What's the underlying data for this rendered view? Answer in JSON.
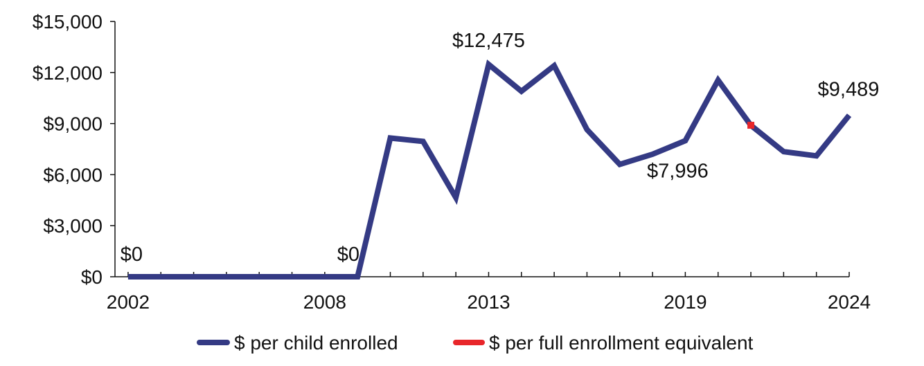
{
  "chart_data": {
    "type": "line",
    "x": [
      2002,
      2003,
      2004,
      2005,
      2006,
      2007,
      2008,
      2009,
      2010,
      2011,
      2012,
      2013,
      2014,
      2015,
      2016,
      2017,
      2018,
      2019,
      2020,
      2021,
      2022,
      2023,
      2024
    ],
    "x_tick_labels": [
      "2002",
      "2008",
      "2013",
      "2019",
      "2024"
    ],
    "y_tick_labels": [
      "$0",
      "$3,000",
      "$6,000",
      "$9,000",
      "$12,000",
      "$15,000"
    ],
    "y_ticks": [
      0,
      3000,
      6000,
      9000,
      12000,
      15000
    ],
    "ylim": [
      0,
      15000
    ],
    "series": [
      {
        "name": "$ per child enrolled",
        "color": "#343a84",
        "values": [
          0,
          0,
          0,
          0,
          0,
          0,
          0,
          0,
          8150,
          7950,
          4650,
          12475,
          10900,
          12400,
          8650,
          6600,
          7200,
          7996,
          11550,
          8900,
          7350,
          7100,
          9489
        ]
      },
      {
        "name": "$ per full enrollment equivalent",
        "color": "#e8262a",
        "x": [
          2021
        ],
        "values": [
          8900
        ]
      }
    ],
    "annotations": [
      {
        "text": "$0",
        "x": 2002,
        "y": 0
      },
      {
        "text": "$0",
        "x": 2008,
        "y": 0
      },
      {
        "text": "$12,475",
        "x": 2013,
        "y": 12475
      },
      {
        "text": "$7,996",
        "x": 2019,
        "y": 7996
      },
      {
        "text": "$9,489",
        "x": 2024,
        "y": 9489
      }
    ],
    "grid": false,
    "legend_position": "bottom"
  }
}
